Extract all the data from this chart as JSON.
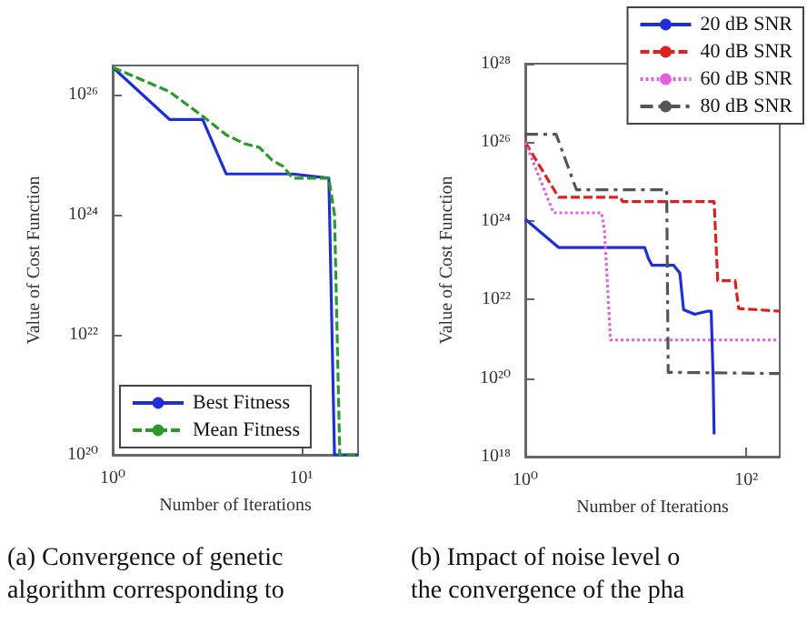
{
  "chart_data": [
    {
      "type": "line",
      "xlabel": "Number of Iterations",
      "ylabel": "Value of Cost Function",
      "log": "xy",
      "legend": "bottom left",
      "grid": false,
      "marker": "none",
      "xlim": [
        1,
        20
      ],
      "xticks": [
        {
          "value": 1,
          "label": "10⁰"
        },
        {
          "value": 10,
          "label": "10¹"
        }
      ],
      "ylim": [
        1e+20,
        3e+26
      ],
      "yticks": [
        {
          "value": 1e+20,
          "label": "10²⁰"
        },
        {
          "value": 1e+22,
          "label": "10²²"
        },
        {
          "value": 1e+24,
          "label": "10²⁴"
        },
        {
          "value": 1e+26,
          "label": "10²⁶"
        }
      ],
      "series": [
        {
          "name": "Best Fitness",
          "color": "#1f2fd6",
          "line_style": "solid",
          "x": [
            1,
            2,
            3,
            4,
            9,
            14,
            15,
            20
          ],
          "values": [
            2.8e+26,
            3.8e+25,
            3.8e+25,
            4.7e+24,
            4.7e+24,
            4e+24,
            1e+20,
            1e+20
          ]
        },
        {
          "name": "Mean Fitness",
          "color": "#2a9a2a",
          "line_style": "dashed",
          "x": [
            1,
            2,
            3,
            4,
            5,
            6,
            7,
            8,
            9,
            14,
            15,
            16,
            20
          ],
          "values": [
            2.8e+26,
            1.1e+26,
            4.3e+25,
            2.1e+25,
            1.5e+25,
            1.3e+25,
            8e+24,
            6.3e+24,
            4e+24,
            4e+24,
            1e+24,
            1e+20,
            1e+20
          ]
        }
      ],
      "annotations": [
        "(a) Convergence of genetic",
        "algorithm corresponding to"
      ]
    },
    {
      "type": "line",
      "xlabel": "Number of Iterations",
      "ylabel": "Value of Cost Function",
      "log": "xy",
      "legend": "top right",
      "grid": false,
      "marker": "none",
      "xlim": [
        1,
        200
      ],
      "xticks": [
        {
          "value": 1,
          "label": "10⁰"
        },
        {
          "value": 100,
          "label": "10²"
        }
      ],
      "ylim": [
        1e+18,
        1e+28
      ],
      "yticks": [
        {
          "value": 1e+18,
          "label": "10¹⁸"
        },
        {
          "value": 1e+20,
          "label": "10²⁰"
        },
        {
          "value": 1e+22,
          "label": "10²²"
        },
        {
          "value": 1e+24,
          "label": "10²⁴"
        },
        {
          "value": 1e+26,
          "label": "10²⁶"
        },
        {
          "value": 1e+28,
          "label": "10²⁸"
        }
      ],
      "series": [
        {
          "name": "20 dB SNR",
          "color": "#1f2fd6",
          "line_style": "solid",
          "x": [
            1,
            2,
            12,
            13,
            14,
            22,
            25,
            27,
            34,
            44,
            48,
            50,
            51
          ],
          "values": [
            1.1e+24,
            2.1e+23,
            2.1e+23,
            1.1e+23,
            7.4e+22,
            7.4e+22,
            4.7e+22,
            5.5e+21,
            4.2e+21,
            5e+21,
            5e+21,
            1e+20,
            3.7e+18
          ]
        },
        {
          "name": "40 dB SNR",
          "color": "#e02020",
          "line_style": "dashed",
          "x": [
            1,
            2,
            7.2,
            7.6,
            51,
            55,
            79,
            85,
            200
          ],
          "values": [
            1e+26,
            4e+24,
            4e+24,
            3.1e+24,
            3.1e+24,
            3e+22,
            3e+22,
            5.9e+21,
            5e+21
          ]
        },
        {
          "name": "60 dB SNR",
          "color": "#e060e0",
          "line_style": "dotted",
          "x": [
            1,
            1.8,
            4.9,
            5.2,
            5.9,
            200
          ],
          "values": [
            1e+26,
            1.6e+24,
            1.6e+24,
            5.6e+23,
            9.3e+20,
            9.3e+20
          ]
        },
        {
          "name": "80 dB SNR",
          "color": "#555555",
          "line_style": "dashdot",
          "x": [
            1,
            1.9,
            2.9,
            19,
            19.6,
            200
          ],
          "values": [
            1.6e+26,
            1.6e+26,
            6.2e+24,
            6.2e+24,
            1.4e+20,
            1.3e+20
          ]
        }
      ],
      "annotations": [
        "(b) Impact of noise level o",
        "the convergence of the pha"
      ]
    }
  ]
}
